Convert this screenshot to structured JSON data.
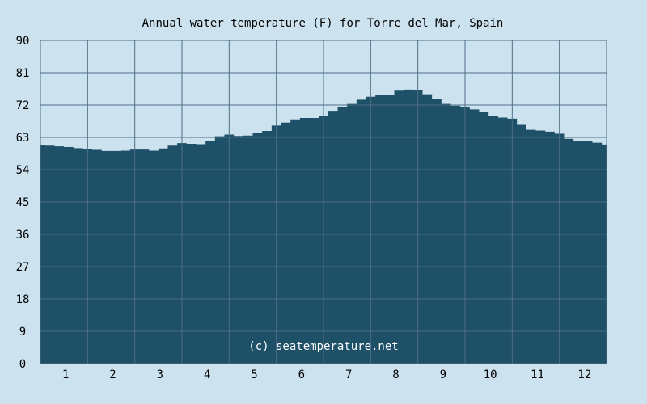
{
  "chart_data": {
    "type": "area",
    "title": "Annual water temperature (F) for Torre del Mar, Spain",
    "xlabel": "",
    "ylabel": "",
    "x_categories": [
      "1",
      "2",
      "3",
      "4",
      "5",
      "6",
      "7",
      "8",
      "9",
      "10",
      "11",
      "12"
    ],
    "y_ticks": [
      0,
      9,
      18,
      27,
      36,
      45,
      54,
      63,
      72,
      81,
      90
    ],
    "ylim": [
      0,
      90
    ],
    "xlim": [
      0.5,
      12.5
    ],
    "grid": true,
    "legend": "none",
    "series": [
      {
        "x": [
          0.5,
          0.6,
          0.8,
          1.0,
          1.2,
          1.4,
          1.6,
          1.8,
          2.0,
          2.2,
          2.4,
          2.6,
          2.8,
          3.0,
          3.2,
          3.4,
          3.6,
          3.8,
          4.0,
          4.2,
          4.4,
          4.6,
          4.8,
          5.0,
          5.2,
          5.4,
          5.6,
          5.8,
          6.0,
          6.2,
          6.4,
          6.6,
          6.8,
          7.0,
          7.2,
          7.4,
          7.6,
          7.8,
          8.0,
          8.2,
          8.4,
          8.6,
          8.8,
          9.0,
          9.2,
          9.4,
          9.6,
          9.8,
          10.0,
          10.2,
          10.4,
          10.6,
          10.8,
          11.0,
          11.2,
          11.4,
          11.6,
          11.8,
          12.0,
          12.2,
          12.4,
          12.5
        ],
        "values": [
          60.9,
          60.7,
          60.5,
          60.3,
          60.0,
          59.8,
          59.5,
          59.2,
          59.2,
          59.3,
          59.6,
          59.6,
          59.3,
          59.9,
          60.7,
          61.4,
          61.2,
          61.1,
          62.0,
          63.3,
          63.8,
          63.4,
          63.5,
          64.2,
          64.8,
          66.3,
          67.1,
          68.0,
          68.4,
          68.4,
          69.0,
          70.4,
          71.4,
          72.3,
          73.5,
          74.3,
          74.8,
          74.8,
          76.0,
          76.3,
          76.1,
          75.0,
          73.6,
          72.3,
          71.8,
          71.5,
          70.8,
          70.0,
          68.9,
          68.5,
          68.2,
          66.5,
          65.1,
          64.9,
          64.6,
          64.0,
          62.6,
          62.1,
          61.9,
          61.5,
          61.0,
          61.0
        ],
        "color": "#1e5068"
      }
    ],
    "annotations": [
      "(c) seatemperature.net"
    ],
    "colors": {
      "background": "#cce3ef",
      "plot_background": "#cce3ef",
      "grid": "#4e6e85",
      "fill": "#1e5068",
      "axis_text": "#000000",
      "watermark": "#ffffff"
    }
  }
}
